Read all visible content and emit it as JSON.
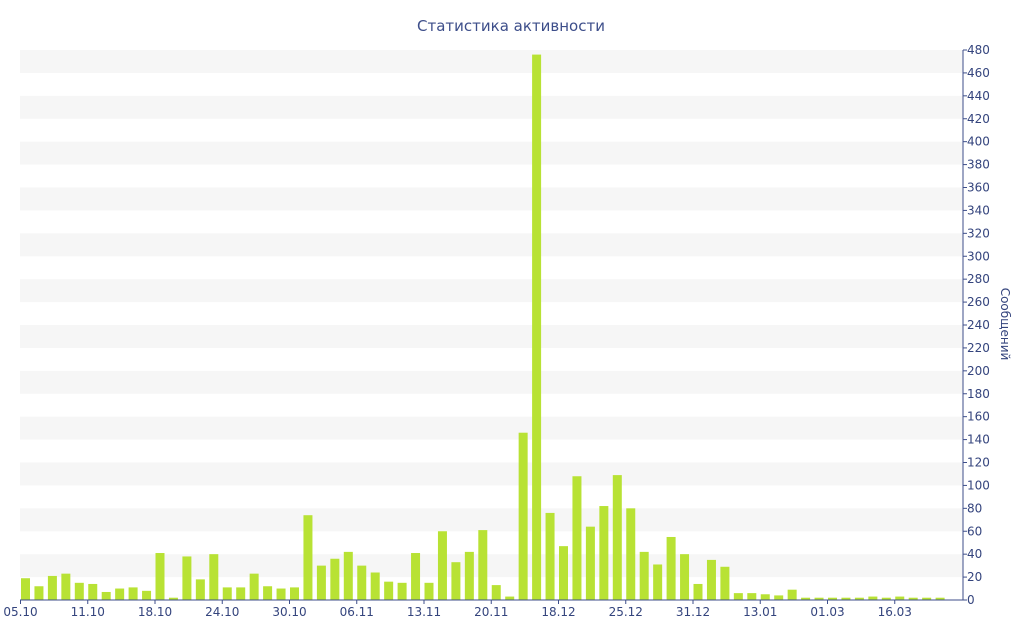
{
  "chart_data": {
    "type": "bar",
    "title": "Статистика активности",
    "ylabel": "Сообщений",
    "xlabel": "",
    "ylim": [
      0,
      480
    ],
    "y_ticks": [
      0,
      20,
      40,
      60,
      80,
      100,
      120,
      140,
      160,
      180,
      200,
      220,
      240,
      260,
      280,
      300,
      320,
      340,
      360,
      380,
      400,
      420,
      440,
      460,
      480
    ],
    "y_axis_position": "right",
    "x_tick_labels": [
      {
        "label": "05.10",
        "index": 0
      },
      {
        "label": "11.10",
        "index": 5
      },
      {
        "label": "18.10",
        "index": 10
      },
      {
        "label": "24.10",
        "index": 15
      },
      {
        "label": "30.10",
        "index": 20
      },
      {
        "label": "06.11",
        "index": 25
      },
      {
        "label": "13.11",
        "index": 30
      },
      {
        "label": "20.11",
        "index": 35
      },
      {
        "label": "18.12",
        "index": 40
      },
      {
        "label": "25.12",
        "index": 45
      },
      {
        "label": "31.12",
        "index": 50
      },
      {
        "label": "13.01",
        "index": 55
      },
      {
        "label": "01.03",
        "index": 60
      },
      {
        "label": "16.03",
        "index": 65
      }
    ],
    "values": [
      19,
      12,
      21,
      23,
      15,
      14,
      7,
      10,
      11,
      8,
      41,
      2,
      38,
      18,
      40,
      11,
      11,
      23,
      12,
      10,
      11,
      74,
      30,
      36,
      42,
      30,
      24,
      16,
      15,
      41,
      15,
      60,
      33,
      42,
      61,
      13,
      3,
      146,
      476,
      76,
      47,
      108,
      64,
      82,
      109,
      80,
      42,
      31,
      55,
      40,
      14,
      35,
      29,
      6,
      6,
      5,
      4,
      9,
      2,
      2,
      2,
      2,
      2,
      3,
      2,
      3,
      2,
      2,
      2
    ],
    "grid": "alternating horizontal bands",
    "colors": {
      "bar": "#b8e234",
      "band": "#f6f6f6",
      "axis": "#3d4e8a",
      "text": "#34447d"
    }
  }
}
